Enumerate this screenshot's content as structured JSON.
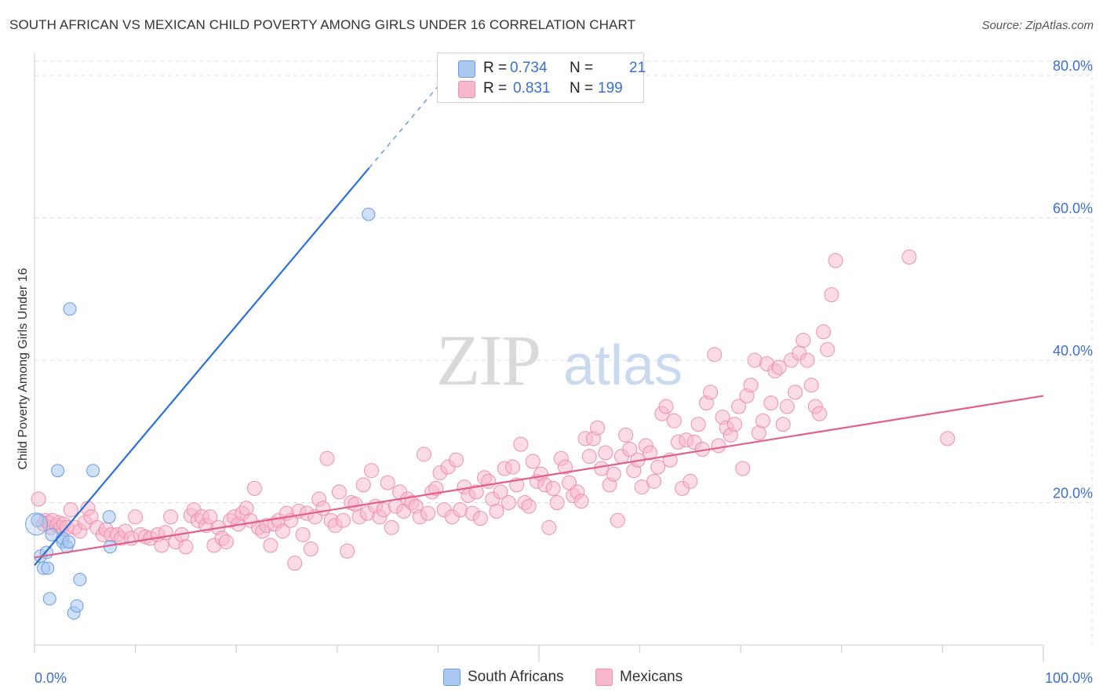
{
  "header": {
    "title": "SOUTH AFRICAN VS MEXICAN CHILD POVERTY AMONG GIRLS UNDER 16 CORRELATION CHART",
    "source": "Source: ZipAtlas.com"
  },
  "watermark": {
    "zip": "ZIP",
    "atlas": "atlas"
  },
  "legend": {
    "rows": [
      {
        "r_label": "R =",
        "r_value": "0.734",
        "n_label": "N =",
        "n_value": "21"
      },
      {
        "r_label": "R =",
        "r_value": "0.831",
        "n_label": "N =",
        "n_value": "199"
      }
    ],
    "bottom": [
      "South Africans",
      "Mexicans"
    ]
  },
  "colors": {
    "blue_fill": "#aac8f0",
    "blue_stroke": "#6a9be0",
    "blue_line": "#2a6fd6",
    "pink_fill": "#f7b8cb",
    "pink_stroke": "#ee8fae",
    "pink_line": "#e0608a",
    "tick_text": "#3a6fd0",
    "grid": "#dddddd"
  },
  "chart_data": {
    "type": "scatter",
    "title": "SOUTH AFRICAN VS MEXICAN CHILD POVERTY AMONG GIRLS UNDER 16 CORRELATION CHART",
    "xlabel": "",
    "ylabel": "Child Poverty Among Girls Under 16",
    "xlim": [
      0,
      100
    ],
    "ylim": [
      0,
      82
    ],
    "x_tick_labels": [
      "0.0%",
      "100.0%"
    ],
    "y_ticks": [
      20,
      40,
      60,
      80
    ],
    "y_tick_labels": [
      "20.0%",
      "40.0%",
      "60.0%",
      "80.0%"
    ],
    "grid": true,
    "series": [
      {
        "name": "South Africans",
        "r": 0.734,
        "n": 21,
        "trend": {
          "x0": 0,
          "y0": 11.2,
          "x1": 40,
          "y1": 78.5,
          "solid_until": 40.0
        },
        "points": [
          [
            0.3,
            17.5
          ],
          [
            0.6,
            12.5
          ],
          [
            0.9,
            10.8
          ],
          [
            1.2,
            13.0
          ],
          [
            1.3,
            10.8
          ],
          [
            1.5,
            6.5
          ],
          [
            1.7,
            15.5
          ],
          [
            2.3,
            24.5
          ],
          [
            2.8,
            14.5
          ],
          [
            2.8,
            15.0
          ],
          [
            3.2,
            13.8
          ],
          [
            3.4,
            14.5
          ],
          [
            3.5,
            47.2
          ],
          [
            3.9,
            4.5
          ],
          [
            4.2,
            5.5
          ],
          [
            4.5,
            9.2
          ],
          [
            5.8,
            24.5
          ],
          [
            7.4,
            18.0
          ],
          [
            7.5,
            13.8
          ],
          [
            33.1,
            60.5
          ],
          [
            0.2,
            17.0
          ]
        ]
      },
      {
        "name": "Mexicans",
        "r": 0.831,
        "n": 199,
        "trend": {
          "x0": 0,
          "y0": 12.3,
          "x1": 100,
          "y1": 35.0
        },
        "points": [
          [
            0.4,
            20.5
          ],
          [
            0.9,
            17.0
          ],
          [
            1.1,
            17.5
          ],
          [
            1.4,
            17.2
          ],
          [
            1.6,
            16.5
          ],
          [
            1.8,
            17.5
          ],
          [
            2.2,
            16.8
          ],
          [
            2.4,
            17.2
          ],
          [
            2.6,
            16.5
          ],
          [
            2.9,
            17.0
          ],
          [
            3.2,
            16.5
          ],
          [
            3.6,
            19.0
          ],
          [
            4.0,
            16.5
          ],
          [
            4.5,
            16.0
          ],
          [
            5.0,
            17.2
          ],
          [
            5.3,
            19.2
          ],
          [
            5.6,
            18.0
          ],
          [
            6.2,
            16.5
          ],
          [
            6.8,
            15.5
          ],
          [
            7.1,
            16.2
          ],
          [
            7.6,
            15.5
          ],
          [
            8.2,
            15.5
          ],
          [
            8.6,
            15.0
          ],
          [
            9.0,
            16.0
          ],
          [
            9.6,
            15.0
          ],
          [
            10.0,
            18.0
          ],
          [
            10.5,
            15.5
          ],
          [
            11.0,
            15.2
          ],
          [
            11.5,
            15.0
          ],
          [
            12.2,
            15.5
          ],
          [
            12.6,
            14.0
          ],
          [
            13.0,
            15.8
          ],
          [
            13.5,
            18.0
          ],
          [
            14.0,
            14.5
          ],
          [
            14.6,
            15.5
          ],
          [
            15.0,
            13.8
          ],
          [
            15.5,
            18.2
          ],
          [
            15.8,
            19.0
          ],
          [
            16.2,
            17.5
          ],
          [
            16.6,
            18.0
          ],
          [
            17.0,
            16.8
          ],
          [
            17.4,
            18.0
          ],
          [
            17.8,
            14.0
          ],
          [
            18.2,
            16.5
          ],
          [
            18.6,
            15.0
          ],
          [
            19.0,
            14.5
          ],
          [
            19.4,
            17.5
          ],
          [
            19.8,
            18.0
          ],
          [
            20.2,
            17.0
          ],
          [
            20.6,
            18.5
          ],
          [
            21.0,
            19.2
          ],
          [
            21.4,
            17.5
          ],
          [
            21.8,
            22.0
          ],
          [
            22.2,
            16.5
          ],
          [
            22.6,
            16.0
          ],
          [
            23.0,
            16.8
          ],
          [
            23.4,
            14.0
          ],
          [
            23.8,
            17.0
          ],
          [
            24.2,
            17.5
          ],
          [
            24.6,
            16.0
          ],
          [
            25.0,
            18.5
          ],
          [
            25.4,
            17.5
          ],
          [
            25.8,
            11.5
          ],
          [
            26.2,
            18.8
          ],
          [
            26.6,
            15.5
          ],
          [
            27.0,
            18.5
          ],
          [
            27.4,
            13.5
          ],
          [
            27.8,
            18.0
          ],
          [
            28.2,
            20.5
          ],
          [
            28.6,
            19.2
          ],
          [
            29.0,
            26.2
          ],
          [
            29.4,
            17.5
          ],
          [
            29.8,
            16.8
          ],
          [
            30.2,
            21.5
          ],
          [
            30.6,
            17.5
          ],
          [
            31.0,
            13.2
          ],
          [
            31.4,
            20.0
          ],
          [
            31.8,
            19.8
          ],
          [
            32.2,
            18.0
          ],
          [
            32.6,
            22.5
          ],
          [
            33.0,
            18.5
          ],
          [
            33.4,
            24.5
          ],
          [
            33.8,
            19.5
          ],
          [
            34.2,
            18.0
          ],
          [
            34.6,
            19.0
          ],
          [
            35.0,
            22.8
          ],
          [
            35.4,
            16.5
          ],
          [
            35.8,
            19.5
          ],
          [
            36.2,
            21.5
          ],
          [
            36.6,
            18.8
          ],
          [
            37.0,
            20.5
          ],
          [
            37.4,
            20.0
          ],
          [
            37.8,
            19.5
          ],
          [
            38.2,
            18.0
          ],
          [
            38.6,
            26.8
          ],
          [
            39.0,
            18.5
          ],
          [
            39.4,
            21.5
          ],
          [
            39.8,
            22.0
          ],
          [
            40.2,
            24.2
          ],
          [
            40.6,
            19.0
          ],
          [
            41.0,
            25.0
          ],
          [
            41.4,
            18.0
          ],
          [
            41.8,
            26.0
          ],
          [
            42.2,
            19.0
          ],
          [
            42.6,
            22.2
          ],
          [
            43.0,
            21.0
          ],
          [
            43.4,
            18.5
          ],
          [
            43.8,
            21.5
          ],
          [
            44.2,
            17.8
          ],
          [
            44.6,
            23.5
          ],
          [
            45.0,
            23.0
          ],
          [
            45.4,
            20.5
          ],
          [
            45.8,
            18.8
          ],
          [
            46.2,
            21.5
          ],
          [
            46.6,
            24.8
          ],
          [
            47.0,
            20.0
          ],
          [
            47.4,
            25.0
          ],
          [
            47.8,
            22.5
          ],
          [
            48.2,
            28.2
          ],
          [
            48.6,
            20.0
          ],
          [
            49.0,
            19.5
          ],
          [
            49.4,
            25.8
          ],
          [
            49.8,
            23.0
          ],
          [
            50.2,
            24.0
          ],
          [
            50.6,
            22.5
          ],
          [
            51.0,
            16.5
          ],
          [
            51.4,
            22.0
          ],
          [
            51.8,
            20.0
          ],
          [
            52.2,
            26.2
          ],
          [
            52.6,
            25.0
          ],
          [
            53.0,
            22.8
          ],
          [
            53.4,
            21.0
          ],
          [
            53.8,
            21.5
          ],
          [
            54.2,
            20.2
          ],
          [
            54.6,
            29.0
          ],
          [
            55.0,
            26.5
          ],
          [
            55.4,
            29.0
          ],
          [
            55.8,
            30.5
          ],
          [
            56.2,
            24.8
          ],
          [
            56.6,
            27.0
          ],
          [
            57.0,
            22.5
          ],
          [
            57.4,
            24.0
          ],
          [
            57.8,
            17.5
          ],
          [
            58.2,
            26.5
          ],
          [
            58.6,
            29.5
          ],
          [
            59.0,
            27.5
          ],
          [
            59.4,
            24.5
          ],
          [
            59.8,
            26.0
          ],
          [
            60.2,
            22.2
          ],
          [
            60.6,
            28.0
          ],
          [
            61.0,
            27.0
          ],
          [
            61.4,
            23.0
          ],
          [
            61.8,
            25.0
          ],
          [
            62.2,
            32.5
          ],
          [
            62.6,
            33.5
          ],
          [
            63.0,
            26.0
          ],
          [
            63.4,
            31.5
          ],
          [
            63.8,
            28.5
          ],
          [
            64.2,
            22.0
          ],
          [
            64.6,
            28.8
          ],
          [
            65.0,
            23.0
          ],
          [
            65.4,
            28.5
          ],
          [
            65.8,
            31.0
          ],
          [
            66.2,
            27.5
          ],
          [
            66.6,
            34.0
          ],
          [
            67.0,
            35.5
          ],
          [
            67.4,
            40.8
          ],
          [
            67.8,
            28.0
          ],
          [
            68.2,
            32.0
          ],
          [
            68.6,
            30.5
          ],
          [
            69.0,
            29.5
          ],
          [
            69.4,
            31.0
          ],
          [
            69.8,
            33.5
          ],
          [
            70.2,
            24.8
          ],
          [
            70.6,
            35.0
          ],
          [
            71.0,
            36.5
          ],
          [
            71.4,
            40.0
          ],
          [
            71.8,
            29.8
          ],
          [
            72.2,
            31.5
          ],
          [
            72.6,
            39.5
          ],
          [
            73.0,
            34.0
          ],
          [
            73.4,
            38.5
          ],
          [
            73.8,
            39.0
          ],
          [
            74.2,
            31.0
          ],
          [
            74.6,
            33.5
          ],
          [
            75.0,
            40.0
          ],
          [
            75.4,
            35.5
          ],
          [
            75.8,
            41.0
          ],
          [
            76.2,
            42.8
          ],
          [
            76.6,
            40.0
          ],
          [
            77.0,
            36.5
          ],
          [
            77.4,
            33.5
          ],
          [
            77.8,
            32.5
          ],
          [
            78.2,
            44.0
          ],
          [
            78.6,
            41.5
          ],
          [
            79.0,
            49.2
          ],
          [
            79.4,
            54.0
          ],
          [
            86.7,
            54.5
          ],
          [
            90.5,
            29.0
          ]
        ]
      }
    ]
  }
}
